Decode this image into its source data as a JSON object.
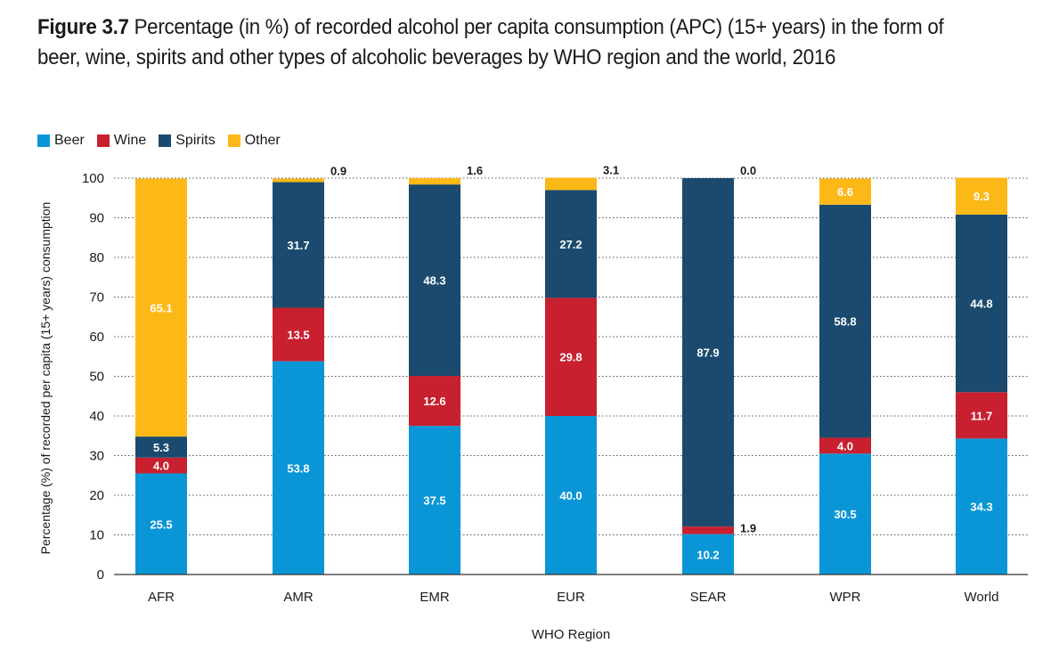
{
  "figure": {
    "label": "Figure 3.7",
    "caption": "Percentage (in %) of recorded alcohol per capita consumption (APC) (15+ years) in the form of beer, wine, spirits and other types of alcoholic beverages by WHO region and the world, 2016"
  },
  "chart_data": {
    "type": "bar",
    "stacked": true,
    "title": "Percentage (in %) of recorded alcohol per capita consumption (APC) (15+ years) in the form of beer, wine, spirits and other types of alcoholic beverages by WHO region and the world, 2016",
    "xlabel": "WHO Region",
    "ylabel": "Percentage (%) of recorded per capita (15+ years) consumption",
    "ylim": [
      0,
      100
    ],
    "yticks": [
      0,
      10,
      20,
      30,
      40,
      50,
      60,
      70,
      80,
      90,
      100
    ],
    "grid": true,
    "legend_position": "top-left",
    "categories": [
      "AFR",
      "AMR",
      "EMR",
      "EUR",
      "SEAR",
      "WPR",
      "World"
    ],
    "series": [
      {
        "name": "Beer",
        "color": "#0a96d6",
        "values": [
          25.5,
          53.8,
          37.5,
          40.0,
          10.2,
          30.5,
          34.3
        ]
      },
      {
        "name": "Wine",
        "color": "#c8202f",
        "values": [
          4.0,
          13.5,
          12.6,
          29.8,
          1.9,
          4.0,
          11.7
        ]
      },
      {
        "name": "Spirits",
        "color": "#1b4a6e",
        "values": [
          5.3,
          31.7,
          48.3,
          27.2,
          87.9,
          58.8,
          44.8
        ]
      },
      {
        "name": "Other",
        "color": "#fbb817",
        "values": [
          65.1,
          0.9,
          1.6,
          3.1,
          0.0,
          6.6,
          9.3
        ]
      }
    ]
  }
}
